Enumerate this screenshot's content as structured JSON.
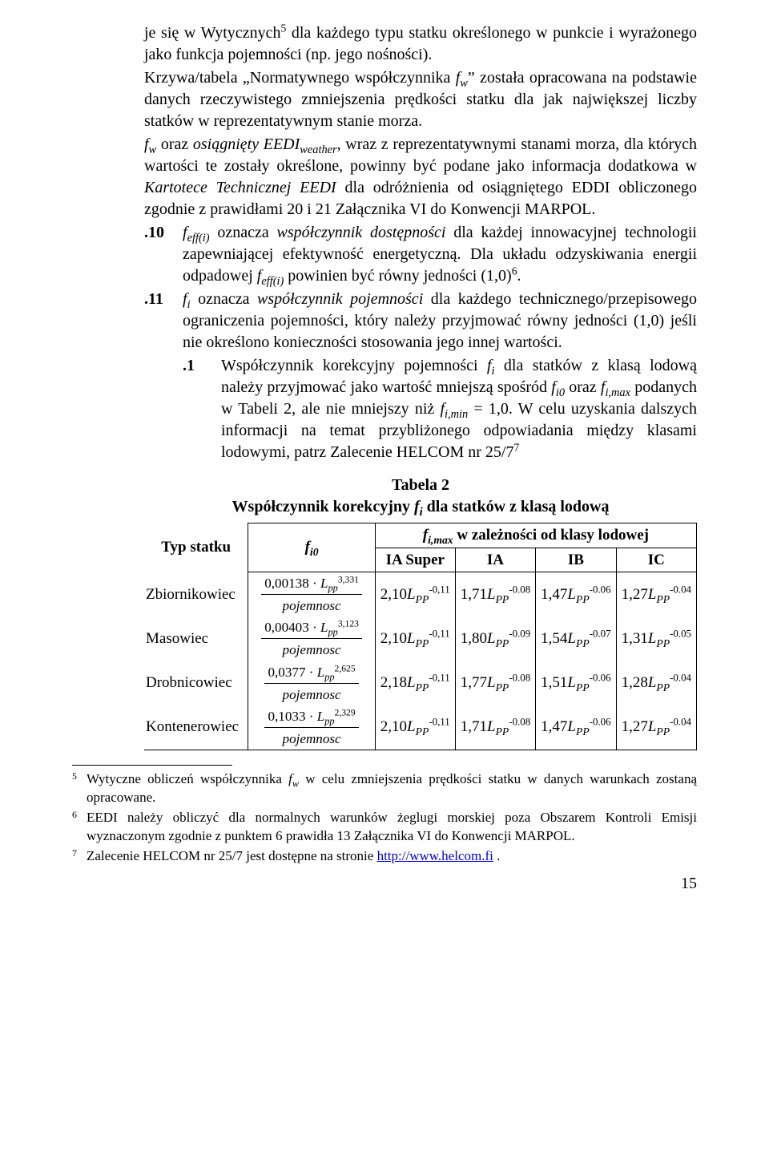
{
  "para1": "je się w Wytycznych",
  "para1_sup": "5",
  "para1_cont": " dla każdego typu statku określonego w punkcie i wyrażonego jako funkcja pojemności (np. jego nośności).",
  "para2_a": "Krzywa/tabela „Normatywnego współczynnika ",
  "para2_fw": "f",
  "para2_w": "w",
  "para2_b": "” została opracowana na podstawie danych rzeczywistego zmniejszenia prędkości statku dla jak największej liczby statków w reprezentatywnym stanie morza.",
  "para3_a": "f",
  "para3_w": "w",
  "para3_b": " oraz ",
  "para3_c": "osiągnięty EEDI",
  "para3_weather": "weather",
  "para3_d": ", wraz z reprezentatywnymi stanami morza, dla których wartości te zostały określone, powinny być podane jako informacja dodatkowa w ",
  "para3_e": "Kartotece Technicznej EEDI",
  "para3_f": " dla odróżnienia od osiągniętego EDDI obliczonego zgodnie z prawidłami 20 i 21 Załącznika VI do Konwencji MARPOL.",
  "n10": ".10",
  "p10_a": "f",
  "p10_sub": "eff(i)",
  "p10_b": " oznacza ",
  "p10_c": "współczynnik dostępności",
  "p10_d": " dla każdej innowacyjnej technologii zapewniającej efektywność energetyczną. Dla układu odzyskiwania energii odpadowej ",
  "p10_e": "f",
  "p10_sub2": "eff(i)",
  "p10_f": " powinien być równy jedności (1,0)",
  "p10_sup": "6",
  "p10_g": ".",
  "n11": ".11",
  "p11_a": "f",
  "p11_sub": "i",
  "p11_b": " oznacza ",
  "p11_c": "współczynnik pojemności",
  "p11_d": " dla każdego technicznego/przepisowego ograniczenia pojemności, który należy przyjmować równy jedności (1,0) jeśli nie określono konieczności stosowania jego innej wartości.",
  "n11_1": ".1",
  "p11_1_a": "Współczynnik korekcyjny pojemności ",
  "p11_1_fi": "f",
  "p11_1_i": "i",
  "p11_1_b": " dla statków z klasą lodową należy przyjmować jako wartość mniejszą spośród ",
  "p11_1_fi0": "f",
  "p11_1_i0": "i0",
  "p11_1_c": " oraz ",
  "p11_1_fimax": "f",
  "p11_1_imax": "i,max",
  "p11_1_d": " podanych w Tabeli 2, ale nie mniejszy niż ",
  "p11_1_fimin": "f",
  "p11_1_imin": "i,min",
  "p11_1_e": " = 1,0. W celu uzyskania dalszych informacji na temat przybliżonego odpowiadania między klasami lodowymi, patrz Zalecenie HELCOM nr 25/7",
  "p11_1_sup": "7",
  "table_title1": "Tabela 2",
  "table_title2_a": "Współczynnik korekcyjny ",
  "table_title2_b": "f",
  "table_title2_c": "i",
  "table_title2_d": " dla statków z klasą lodową",
  "th_typ": "Typ statku",
  "th_fi0": "f",
  "th_fi0_sub": "i0",
  "th_fimax_a": "f",
  "th_fimax_sub": "i,max",
  "th_fimax_b": " w zależności od klasy lodowej",
  "th_ia_super": "IA Super",
  "th_ia": "IA",
  "th_ib": "IB",
  "th_ic": "IC",
  "rows": [
    {
      "name": "Zbiornikowiec",
      "coef": "0,00138",
      "exp": "3,331",
      "ia_super_coef": "2,10",
      "ia_super_exp": "-0,11",
      "ia_coef": "1,71",
      "ia_exp": "-0.08",
      "ib_coef": "1,47",
      "ib_exp": "-0.06",
      "ic_coef": "1,27",
      "ic_exp": "-0.04"
    },
    {
      "name": "Masowiec",
      "coef": "0,00403",
      "exp": "3,123",
      "ia_super_coef": "2,10",
      "ia_super_exp": "-0,11",
      "ia_coef": "1,80",
      "ia_exp": "-0.09",
      "ib_coef": "1,54",
      "ib_exp": "-0.07",
      "ic_coef": "1,31",
      "ic_exp": "-0.05"
    },
    {
      "name": "Drobnicowiec",
      "coef": "0,0377",
      "exp": "2,625",
      "ia_super_coef": "2,18",
      "ia_super_exp": "-0,11",
      "ia_coef": "1,77",
      "ia_exp": "-0.08",
      "ib_coef": "1,51",
      "ib_exp": "-0.06",
      "ic_coef": "1,28",
      "ic_exp": "-0.04"
    },
    {
      "name": "Kontenerowiec",
      "coef": "0,1033",
      "exp": "2,329",
      "ia_super_coef": "2,10",
      "ia_super_exp": "-0,11",
      "ia_coef": "1,71",
      "ia_exp": "-0.08",
      "ib_coef": "1,47",
      "ib_exp": "-0.06",
      "ic_coef": "1,27",
      "ic_exp": "-0.04"
    }
  ],
  "Lpp": "L",
  "pp": "pp",
  "pojemnosc": "pojemnosc",
  "LPP": "L",
  "PP": "PP",
  "fn5_n": "5",
  "fn5_a": "Wytyczne obliczeń współczynnika ",
  "fn5_fw": "f",
  "fn5_w": "w",
  "fn5_b": " w celu zmniejszenia prędkości statku w danych warunkach zostaną opracowane.",
  "fn6_n": "6",
  "fn6": "EEDI należy obliczyć dla normalnych warunków żeglugi morskiej poza Obszarem Kontroli Emisji wyznaczonym zgodnie z punktem 6 prawidła 13 Załącznika VI do Konwencji MARPOL.",
  "fn7_n": "7",
  "fn7_a": "Zalecenie HELCOM nr 25/7 jest dostępne na stronie ",
  "fn7_link": "http://www.helcom.fi",
  "fn7_b": " .",
  "pagenum": "15"
}
